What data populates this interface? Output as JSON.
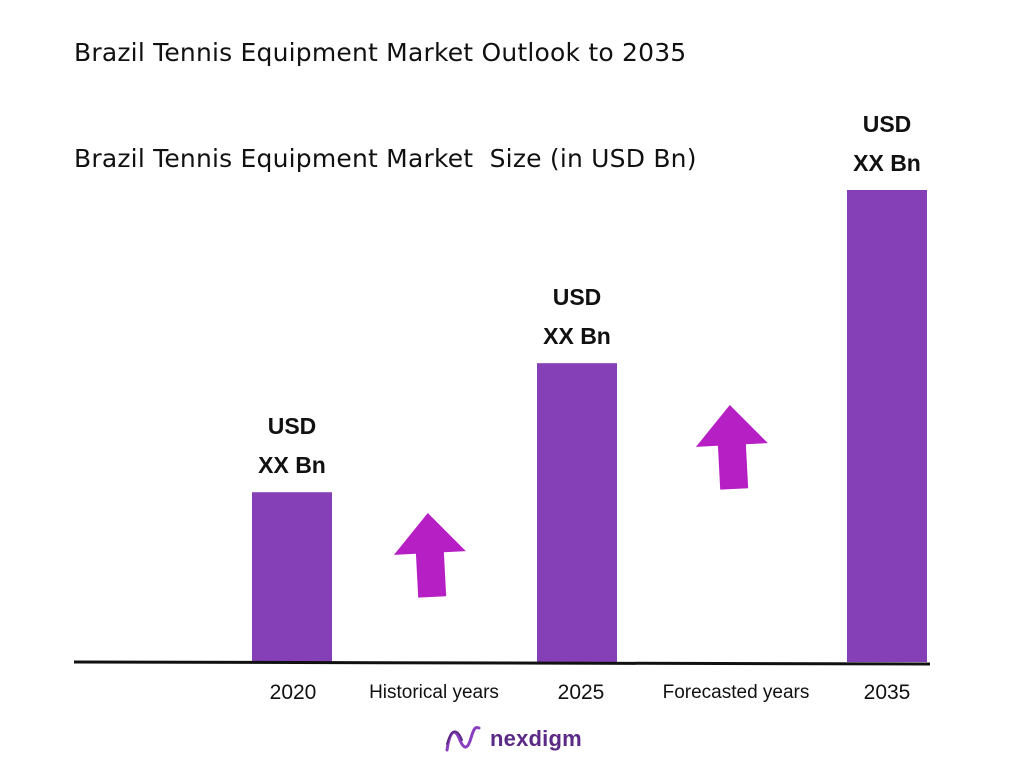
{
  "title": "Brazil Tennis Equipment Market Outlook to 2035",
  "subtitle": "Brazil Tennis Equipment Market  Size (in USD Bn)",
  "brand": {
    "name": "nexdigm",
    "logo_icon": "nexdigm-logo-icon"
  },
  "colors": {
    "bar": "#8540b8",
    "arrow": "#b51fc3",
    "axis": "#111111"
  },
  "chart_data": {
    "type": "bar",
    "categories": [
      "2020",
      "2025",
      "2035"
    ],
    "values": [
      1.0,
      1.76,
      2.78
    ],
    "value_labels": [
      {
        "line1": "USD",
        "line2": "XX Bn"
      },
      {
        "line1": "USD",
        "line2": "XX Bn"
      },
      {
        "line1": "USD",
        "line2": "XX Bn"
      }
    ],
    "period_labels": [
      "Historical years",
      "Forecasted years"
    ],
    "growth_arrows": [
      "up-arrow-icon",
      "up-arrow-icon"
    ],
    "xlabel": "",
    "ylabel": "",
    "grid": false,
    "legend": "none"
  }
}
